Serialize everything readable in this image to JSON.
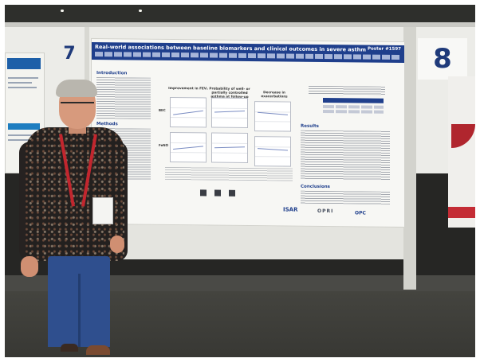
{
  "scene": {
    "description_free": true,
    "board_numbers": {
      "left": "7",
      "main": "8"
    }
  },
  "poster": {
    "title": "Real-world associations between baseline biomarkers and clinical outcomes in severe asthma patients treated with biologics",
    "poster_number": "Poster #1597",
    "sections": {
      "introduction": "Introduction",
      "methods": "Methods",
      "results": "Results",
      "conclusions": "Conclusions"
    },
    "figure_columns": [
      "Improvement in FEV₁",
      "Probability of well- or partially controlled asthma at follow-up",
      "Decrease in exacerbations"
    ],
    "figure_rows": [
      "BEC",
      "FeNO"
    ],
    "logos": [
      "ISAR",
      "OPRI",
      "OPC"
    ]
  },
  "badge": {
    "text": ""
  },
  "colors": {
    "poster_header": "#1f3f8c",
    "board_number": "#1f3a7a",
    "lanyard": "#c2262e",
    "jeans": "#2f4f8e"
  }
}
